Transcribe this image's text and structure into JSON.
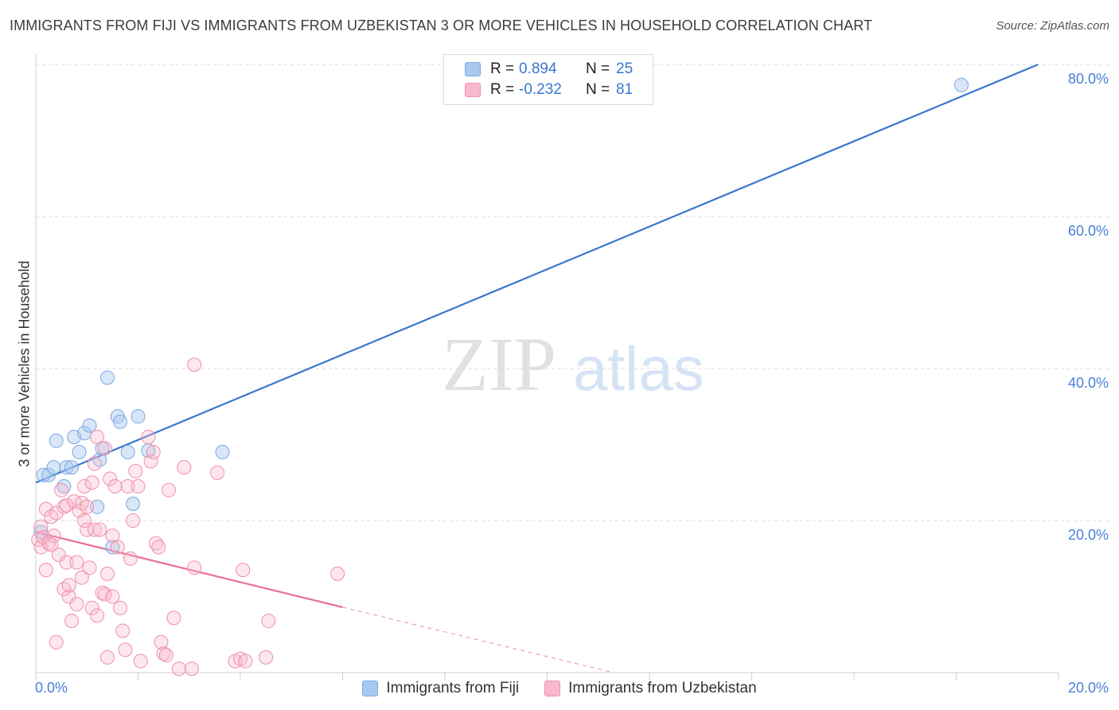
{
  "title": "IMMIGRANTS FROM FIJI VS IMMIGRANTS FROM UZBEKISTAN 3 OR MORE VEHICLES IN HOUSEHOLD CORRELATION CHART",
  "source": "Source: ZipAtlas.com",
  "watermark": {
    "zip": "ZIP",
    "atlas": "atlas"
  },
  "legend_stats": [
    {
      "r_label": "R =",
      "r_value": "0.894",
      "n_label": "N =",
      "n_value": "25",
      "color": "#a8c8f0",
      "border": "#7aa8e0"
    },
    {
      "r_label": "R =",
      "r_value": "-0.232",
      "n_label": "N =",
      "n_value": "81",
      "color": "#f7b9cc",
      "border": "#ef8fab"
    }
  ],
  "colors": {
    "fiji": "#3a76d0",
    "uzbekistan": "#e8709a",
    "axis_text": "#4a80d4",
    "grid": "#d8d8d8"
  },
  "chart_data": {
    "type": "scatter",
    "title": "IMMIGRANTS FROM FIJI VS IMMIGRANTS FROM UZBEKISTAN 3 OR MORE VEHICLES IN HOUSEHOLD CORRELATION CHART",
    "xlabel": "",
    "ylabel": "3 or more Vehicles in Household",
    "xlim": [
      0,
      20
    ],
    "ylim": [
      0,
      82
    ],
    "x_tick_labels": [
      {
        "value": 0,
        "label": "0.0%"
      },
      {
        "value": 20,
        "label": "20.0%"
      }
    ],
    "y_tick_labels": [
      {
        "value": 20,
        "label": "20.0%"
      },
      {
        "value": 40,
        "label": "40.0%"
      },
      {
        "value": 60,
        "label": "60.0%"
      },
      {
        "value": 80,
        "label": "80.0%"
      }
    ],
    "grid": true,
    "legend_position": "bottom-center",
    "series": [
      {
        "name": "Immigrants from Fiji",
        "r": 0.894,
        "n": 25,
        "trend": {
          "x": [
            0,
            19.6
          ],
          "y": [
            25.0,
            80.0
          ],
          "dashed_x": null
        },
        "points": [
          {
            "x": 0.15,
            "y": 26.0
          },
          {
            "x": 0.25,
            "y": 26.0
          },
          {
            "x": 0.35,
            "y": 27.0
          },
          {
            "x": 0.4,
            "y": 30.5
          },
          {
            "x": 0.55,
            "y": 24.5
          },
          {
            "x": 0.6,
            "y": 27.0
          },
          {
            "x": 0.7,
            "y": 27.0
          },
          {
            "x": 0.75,
            "y": 31.0
          },
          {
            "x": 0.85,
            "y": 29.0
          },
          {
            "x": 0.95,
            "y": 31.5
          },
          {
            "x": 1.05,
            "y": 32.5
          },
          {
            "x": 1.2,
            "y": 21.8
          },
          {
            "x": 1.25,
            "y": 28.0
          },
          {
            "x": 1.3,
            "y": 29.5
          },
          {
            "x": 1.4,
            "y": 38.8
          },
          {
            "x": 1.5,
            "y": 16.5
          },
          {
            "x": 1.6,
            "y": 33.7
          },
          {
            "x": 1.65,
            "y": 33.0
          },
          {
            "x": 1.8,
            "y": 29.0
          },
          {
            "x": 1.9,
            "y": 22.2
          },
          {
            "x": 2.0,
            "y": 33.7
          },
          {
            "x": 2.2,
            "y": 29.2
          },
          {
            "x": 3.65,
            "y": 29.0
          },
          {
            "x": 18.1,
            "y": 77.3
          },
          {
            "x": 0.1,
            "y": 18.5
          }
        ]
      },
      {
        "name": "Immigrants from Uzbekistan",
        "r": -0.232,
        "n": 81,
        "trend": {
          "x": [
            0,
            6.0
          ],
          "y": [
            18.5,
            8.6
          ],
          "dashed_x": [
            6.0,
            11.3
          ],
          "dashed_y": [
            8.6,
            0
          ]
        },
        "points": [
          {
            "x": 0.05,
            "y": 17.5
          },
          {
            "x": 0.1,
            "y": 16.5
          },
          {
            "x": 0.1,
            "y": 19.2
          },
          {
            "x": 0.15,
            "y": 17.8
          },
          {
            "x": 0.2,
            "y": 13.5
          },
          {
            "x": 0.2,
            "y": 21.5
          },
          {
            "x": 0.25,
            "y": 17.0
          },
          {
            "x": 0.3,
            "y": 20.5
          },
          {
            "x": 0.35,
            "y": 18.0
          },
          {
            "x": 0.4,
            "y": 21.0
          },
          {
            "x": 0.4,
            "y": 4.0
          },
          {
            "x": 0.45,
            "y": 15.5
          },
          {
            "x": 0.5,
            "y": 24.0
          },
          {
            "x": 0.55,
            "y": 21.8
          },
          {
            "x": 0.55,
            "y": 11.0
          },
          {
            "x": 0.6,
            "y": 14.5
          },
          {
            "x": 0.65,
            "y": 10.0
          },
          {
            "x": 0.65,
            "y": 11.5
          },
          {
            "x": 0.7,
            "y": 6.8
          },
          {
            "x": 0.75,
            "y": 22.5
          },
          {
            "x": 0.8,
            "y": 14.5
          },
          {
            "x": 0.8,
            "y": 9.0
          },
          {
            "x": 0.85,
            "y": 21.3
          },
          {
            "x": 0.9,
            "y": 22.3
          },
          {
            "x": 0.9,
            "y": 12.5
          },
          {
            "x": 0.95,
            "y": 20.0
          },
          {
            "x": 0.95,
            "y": 24.5
          },
          {
            "x": 1.0,
            "y": 18.8
          },
          {
            "x": 1.0,
            "y": 21.8
          },
          {
            "x": 1.05,
            "y": 13.8
          },
          {
            "x": 1.1,
            "y": 8.5
          },
          {
            "x": 1.15,
            "y": 18.8
          },
          {
            "x": 1.15,
            "y": 27.5
          },
          {
            "x": 1.2,
            "y": 31.0
          },
          {
            "x": 1.2,
            "y": 7.5
          },
          {
            "x": 1.25,
            "y": 18.8
          },
          {
            "x": 1.3,
            "y": 10.5
          },
          {
            "x": 1.35,
            "y": 10.3
          },
          {
            "x": 1.35,
            "y": 29.5
          },
          {
            "x": 1.4,
            "y": 13.0
          },
          {
            "x": 1.4,
            "y": 2.0
          },
          {
            "x": 1.45,
            "y": 25.5
          },
          {
            "x": 1.5,
            "y": 18.0
          },
          {
            "x": 1.5,
            "y": 10.0
          },
          {
            "x": 1.55,
            "y": 24.5
          },
          {
            "x": 1.6,
            "y": 16.5
          },
          {
            "x": 1.65,
            "y": 8.5
          },
          {
            "x": 1.7,
            "y": 5.5
          },
          {
            "x": 1.75,
            "y": 3.0
          },
          {
            "x": 1.8,
            "y": 24.5
          },
          {
            "x": 1.85,
            "y": 15.0
          },
          {
            "x": 1.9,
            "y": 20.0
          },
          {
            "x": 1.95,
            "y": 26.5
          },
          {
            "x": 2.0,
            "y": 24.5
          },
          {
            "x": 2.05,
            "y": 1.5
          },
          {
            "x": 2.2,
            "y": 31.0
          },
          {
            "x": 2.25,
            "y": 27.8
          },
          {
            "x": 2.35,
            "y": 17.0
          },
          {
            "x": 2.4,
            "y": 16.5
          },
          {
            "x": 2.45,
            "y": 4.0
          },
          {
            "x": 2.5,
            "y": 2.5
          },
          {
            "x": 2.55,
            "y": 2.3
          },
          {
            "x": 2.6,
            "y": 24.0
          },
          {
            "x": 2.7,
            "y": 7.2
          },
          {
            "x": 2.8,
            "y": 0.5
          },
          {
            "x": 2.9,
            "y": 27.0
          },
          {
            "x": 3.05,
            "y": 0.5
          },
          {
            "x": 3.1,
            "y": 40.5
          },
          {
            "x": 3.1,
            "y": 13.8
          },
          {
            "x": 3.55,
            "y": 26.3
          },
          {
            "x": 3.9,
            "y": 1.5
          },
          {
            "x": 4.05,
            "y": 13.5
          },
          {
            "x": 4.0,
            "y": 1.8
          },
          {
            "x": 4.1,
            "y": 1.5
          },
          {
            "x": 4.5,
            "y": 2.0
          },
          {
            "x": 4.55,
            "y": 6.8
          },
          {
            "x": 5.9,
            "y": 13.0
          },
          {
            "x": 0.3,
            "y": 16.8
          },
          {
            "x": 0.6,
            "y": 22.0
          },
          {
            "x": 1.1,
            "y": 25.0
          },
          {
            "x": 2.3,
            "y": 29.0
          }
        ]
      }
    ]
  },
  "bottom_legend": [
    {
      "label": "Immigrants from Fiji",
      "color": "#a8c8f0",
      "border": "#7aa8e0"
    },
    {
      "label": "Immigrants from Uzbekistan",
      "color": "#f7b9cc",
      "border": "#ef8fab"
    }
  ]
}
